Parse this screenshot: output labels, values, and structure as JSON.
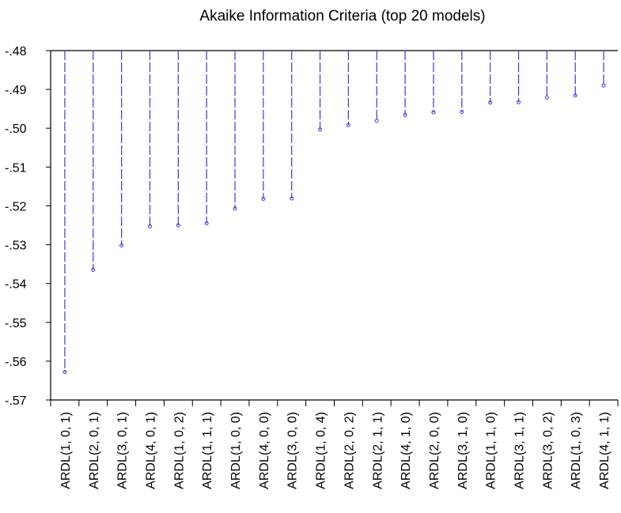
{
  "chart_data": {
    "type": "scatter",
    "style": "dropline",
    "title": "Akaike Information Criteria (top 20 models)",
    "xlabel": "",
    "ylabel": "",
    "ylim": [
      -0.57,
      -0.48
    ],
    "yticks": [
      {
        "value": -0.48,
        "label": "-.48"
      },
      {
        "value": -0.49,
        "label": "-.49"
      },
      {
        "value": -0.5,
        "label": "-.50"
      },
      {
        "value": -0.51,
        "label": "-.51"
      },
      {
        "value": -0.52,
        "label": "-.52"
      },
      {
        "value": -0.53,
        "label": "-.53"
      },
      {
        "value": -0.54,
        "label": "-.54"
      },
      {
        "value": -0.55,
        "label": "-.55"
      },
      {
        "value": -0.56,
        "label": "-.56"
      },
      {
        "value": -0.57,
        "label": "-.57"
      }
    ],
    "categories": [
      "ARDL(1, 0, 1)",
      "ARDL(2, 0, 1)",
      "ARDL(3, 0, 1)",
      "ARDL(4, 0, 1)",
      "ARDL(1, 0, 2)",
      "ARDL(1, 1, 1)",
      "ARDL(1, 0, 0)",
      "ARDL(4, 0, 0)",
      "ARDL(3, 0, 0)",
      "ARDL(1, 0, 4)",
      "ARDL(2, 0, 2)",
      "ARDL(2, 1, 1)",
      "ARDL(4, 1, 0)",
      "ARDL(2, 0, 0)",
      "ARDL(3, 1, 0)",
      "ARDL(1, 1, 0)",
      "ARDL(3, 1, 1)",
      "ARDL(3, 0, 2)",
      "ARDL(1, 0, 3)",
      "ARDL(4, 1, 1)"
    ],
    "values": [
      -0.5628,
      -0.5365,
      -0.5302,
      -0.5253,
      -0.525,
      -0.5245,
      -0.5207,
      -0.5182,
      -0.5181,
      -0.5003,
      -0.4992,
      -0.4981,
      -0.4966,
      -0.4959,
      -0.4958,
      -0.4934,
      -0.4933,
      -0.4921,
      -0.4916,
      -0.489
    ],
    "grid": false,
    "legend": "none",
    "colors": {
      "series": "#3a3ad6",
      "axis": "#000000"
    }
  }
}
